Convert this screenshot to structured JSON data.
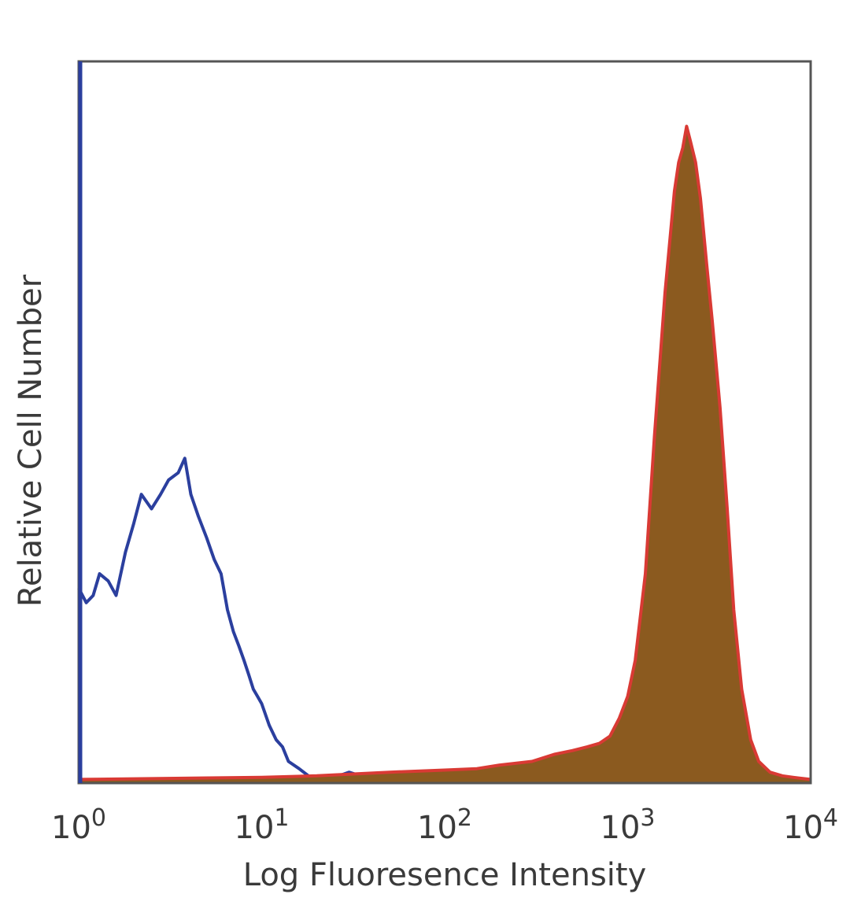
{
  "chart_data": {
    "type": "area",
    "xlabel": "Log Fluoresence Intensity",
    "ylabel": "Relative Cell Number",
    "x_scale": "log",
    "xlim": [
      1,
      10000
    ],
    "ylim": [
      0,
      100
    ],
    "x_ticks": [
      {
        "value": 1,
        "base": "10",
        "exp": "0"
      },
      {
        "value": 10,
        "base": "10",
        "exp": "1"
      },
      {
        "value": 100,
        "base": "10",
        "exp": "2"
      },
      {
        "value": 1000,
        "base": "10",
        "exp": "3"
      },
      {
        "value": 10000,
        "base": "10",
        "exp": "4"
      }
    ],
    "grid": false,
    "legend": "none",
    "series": [
      {
        "style": "line",
        "color": "#2b3f9e",
        "x": [
          1,
          1.1,
          1.2,
          1.3,
          1.45,
          1.6,
          1.8,
          2.0,
          2.2,
          2.5,
          2.8,
          3.1,
          3.5,
          3.8,
          4.1,
          4.5,
          5.0,
          5.5,
          6.0,
          6.5,
          7.0,
          7.5,
          8.0,
          8.5,
          9.0,
          9.5,
          10.0,
          11.0,
          12.0,
          13.0,
          14.0,
          16.0,
          18.0,
          20.0,
          25.0,
          30.0,
          40.0,
          50.0,
          60.0,
          70.0
        ],
        "values": [
          27,
          25,
          26,
          29,
          28,
          26,
          32,
          36,
          40,
          38,
          40,
          42,
          43,
          45,
          40,
          37,
          34,
          31,
          29,
          24,
          21,
          19,
          17,
          15,
          13,
          12,
          11,
          8,
          6,
          5,
          3,
          2,
          1,
          0.8,
          0.8,
          1.5,
          0.5,
          0.5,
          0.3,
          0.2
        ]
      },
      {
        "style": "area",
        "color": "#d93a34",
        "fill": "#8b5a1f",
        "x": [
          1,
          10,
          20,
          50,
          100,
          150,
          200,
          300,
          400,
          500,
          600,
          700,
          800,
          900,
          1000,
          1100,
          1250,
          1400,
          1600,
          1800,
          1900,
          2000,
          2100,
          2200,
          2350,
          2500,
          2700,
          2900,
          3200,
          3500,
          3800,
          4200,
          4700,
          5200,
          6000,
          7000,
          8000,
          10000
        ],
        "values": [
          0.5,
          0.8,
          1.0,
          1.5,
          1.8,
          2.0,
          2.5,
          3.0,
          4.0,
          4.5,
          5.0,
          5.5,
          6.5,
          9.0,
          12.0,
          17.0,
          29.0,
          48.0,
          68.0,
          82.0,
          86.0,
          88.0,
          91.0,
          89.0,
          86.0,
          81.0,
          72.0,
          64.0,
          52.0,
          38.0,
          24.0,
          13.0,
          6.0,
          3.0,
          1.5,
          1.0,
          0.8,
          0.5
        ]
      }
    ]
  }
}
